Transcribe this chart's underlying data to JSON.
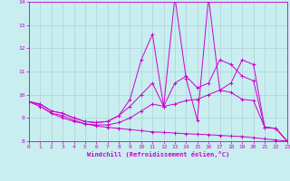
{
  "xlabel": "Windchill (Refroidissement éolien,°C)",
  "xlim": [
    0,
    23
  ],
  "ylim": [
    8,
    14
  ],
  "yticks": [
    8,
    9,
    10,
    11,
    12,
    13,
    14
  ],
  "xticks": [
    0,
    1,
    2,
    3,
    4,
    5,
    6,
    7,
    8,
    9,
    10,
    11,
    12,
    13,
    14,
    15,
    16,
    17,
    18,
    19,
    20,
    21,
    22,
    23
  ],
  "bg_color": "#c8eef0",
  "line_color": "#cc00cc",
  "grid_color": "#b0d0d8",
  "curves": [
    {
      "x": [
        0,
        1,
        2,
        3,
        4,
        5,
        6,
        7,
        8,
        9,
        10,
        11,
        12,
        13,
        14,
        15,
        16,
        17,
        18,
        19,
        20,
        21,
        22,
        23
      ],
      "y": [
        9.7,
        9.5,
        9.2,
        9.0,
        8.85,
        8.75,
        8.65,
        8.6,
        8.55,
        8.5,
        8.45,
        8.4,
        8.38,
        8.35,
        8.32,
        8.3,
        8.28,
        8.25,
        8.22,
        8.2,
        8.15,
        8.1,
        8.05,
        8.0
      ]
    },
    {
      "x": [
        0,
        1,
        2,
        3,
        4,
        5,
        6,
        7,
        8,
        9,
        10,
        11,
        12,
        13,
        14,
        15,
        16,
        17,
        18,
        19,
        20,
        21,
        22,
        23
      ],
      "y": [
        9.7,
        9.5,
        9.2,
        9.1,
        8.9,
        8.75,
        8.7,
        8.7,
        8.8,
        9.0,
        9.3,
        9.6,
        9.5,
        9.6,
        9.75,
        9.8,
        10.0,
        10.2,
        10.1,
        9.8,
        9.75,
        8.6,
        8.55,
        8.0
      ]
    },
    {
      "x": [
        0,
        1,
        2,
        3,
        4,
        5,
        6,
        7,
        8,
        9,
        10,
        11,
        12,
        13,
        14,
        15,
        16,
        17,
        18,
        19,
        20,
        21,
        22,
        23
      ],
      "y": [
        9.7,
        9.6,
        9.3,
        9.2,
        9.0,
        8.85,
        8.8,
        8.85,
        9.1,
        9.5,
        10.0,
        10.5,
        9.5,
        10.5,
        10.8,
        10.3,
        10.5,
        11.5,
        11.3,
        10.8,
        10.6,
        8.6,
        8.55,
        8.0
      ]
    },
    {
      "x": [
        0,
        1,
        2,
        3,
        4,
        5,
        6,
        7,
        8,
        9,
        10,
        11,
        12,
        13,
        14,
        15,
        16,
        17,
        18,
        19,
        20,
        21,
        22,
        23
      ],
      "y": [
        9.7,
        9.6,
        9.3,
        9.2,
        9.0,
        8.85,
        8.8,
        8.85,
        9.1,
        9.8,
        11.5,
        12.6,
        9.5,
        14.2,
        10.7,
        8.9,
        14.2,
        10.2,
        10.5,
        11.5,
        11.3,
        8.6,
        8.55,
        8.0
      ]
    }
  ]
}
